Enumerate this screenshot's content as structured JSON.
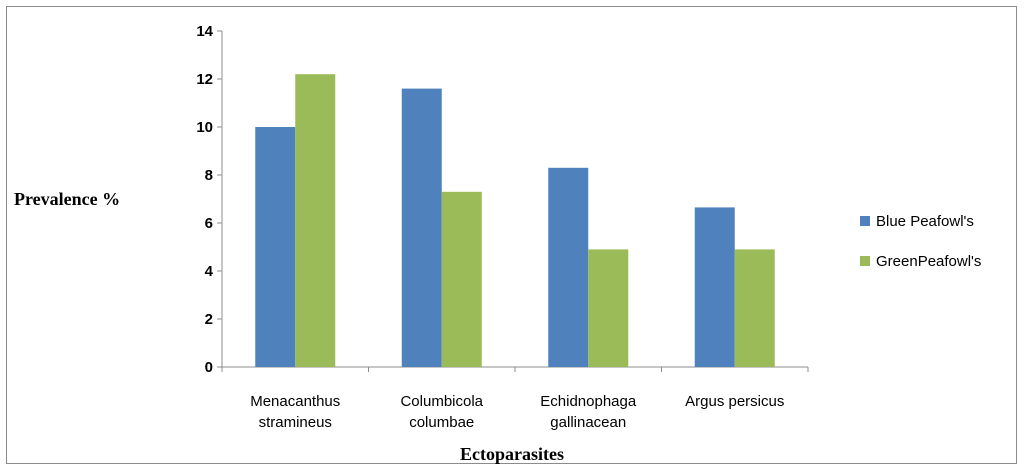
{
  "chart_data": {
    "type": "bar",
    "title": "",
    "xlabel": "Ectoparasites",
    "ylabel": "Prevalence %",
    "ylim": [
      0,
      14
    ],
    "yticks": [
      0,
      2,
      4,
      6,
      8,
      10,
      12,
      14
    ],
    "categories": [
      [
        "Menacanthus",
        "stramineus"
      ],
      [
        "Columbicola",
        "columbae"
      ],
      [
        "Echidnophaga",
        "gallinacean"
      ],
      [
        "Argus persicus"
      ]
    ],
    "series": [
      {
        "name": "Blue Peafowl's",
        "color": "#4f81bd",
        "values": [
          10,
          11.6,
          8.3,
          6.65
        ]
      },
      {
        "name": "GreenPeafowl's",
        "color": "#9bbb59",
        "values": [
          12.2,
          7.3,
          4.9,
          4.9
        ]
      }
    ],
    "grid": false,
    "legend_position": "right"
  }
}
